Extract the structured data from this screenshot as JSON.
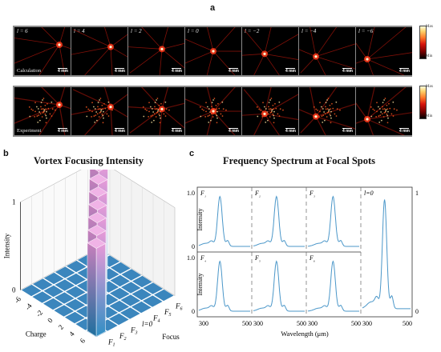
{
  "panel_a": {
    "label": "a",
    "charges": [
      "l = 6",
      "l = 4",
      "l = 2",
      "l = 0",
      "l = −2",
      "l = −4",
      "l = −6"
    ],
    "scale_bar": "4 mm",
    "row_labels": [
      "Calculation",
      "Experiment"
    ],
    "colorbar": {
      "max": "Max",
      "min": "Min"
    },
    "colors": {
      "background": "#000000",
      "frame": "#8a8a8a",
      "hot": "#ff3a1a"
    }
  },
  "panel_b": {
    "label": "b",
    "title": "Vortex Focusing Intensity"
  },
  "panel_c": {
    "label": "c",
    "title": "Frequency Spectrum at Focal Spots"
  },
  "chart_data": [
    {
      "type": "bar",
      "title": "Vortex Focusing Intensity",
      "xlabel": "Charge",
      "ylabel": "Intensity",
      "zlabel": "Focus",
      "charge_ticks": [
        "6",
        "4",
        "2",
        "0",
        "-2",
        "-4",
        "-6"
      ],
      "focus_ticks": [
        "F1",
        "F2",
        "F3",
        "l=0",
        "F4",
        "F5",
        "F6"
      ],
      "z_ticks": [
        "0",
        "1"
      ],
      "ylim": [
        0,
        1
      ],
      "bars": [
        {
          "charge": "6",
          "focus": "F1",
          "value": 1
        },
        {
          "charge": "4",
          "focus": "F2",
          "value": 1
        },
        {
          "charge": "2",
          "focus": "F3",
          "value": 1
        },
        {
          "charge": "0",
          "focus": "l=0",
          "value": 1
        },
        {
          "charge": "-2",
          "focus": "F4",
          "value": 1
        },
        {
          "charge": "-4",
          "focus": "F5",
          "value": 1
        },
        {
          "charge": "-6",
          "focus": "F6",
          "value": 1
        }
      ],
      "colors": {
        "top": "#e89ad8",
        "bottom": "#2f8fc4"
      }
    },
    {
      "type": "line",
      "title": "Frequency Spectrum at Focal Spots",
      "xlabel": "Wavelength (μm)",
      "ylabel": "Intensity",
      "x_ticks": [
        "300",
        "500"
      ],
      "y_ticks": [
        "0",
        "1.0"
      ],
      "right_ticks": [
        "0",
        "1"
      ],
      "xlim": [
        300,
        500
      ],
      "ylim": [
        0,
        1
      ],
      "color": "#4b97c9",
      "subplots": [
        {
          "name": "F₁",
          "peak": 382
        },
        {
          "name": "F₂",
          "peak": 390
        },
        {
          "name": "F₃",
          "peak": 398
        },
        {
          "name": "F₄",
          "peak": 382
        },
        {
          "name": "F₅",
          "peak": 390
        },
        {
          "name": "F₆",
          "peak": 398
        },
        {
          "name": "l=0",
          "peak": 392
        }
      ]
    }
  ]
}
